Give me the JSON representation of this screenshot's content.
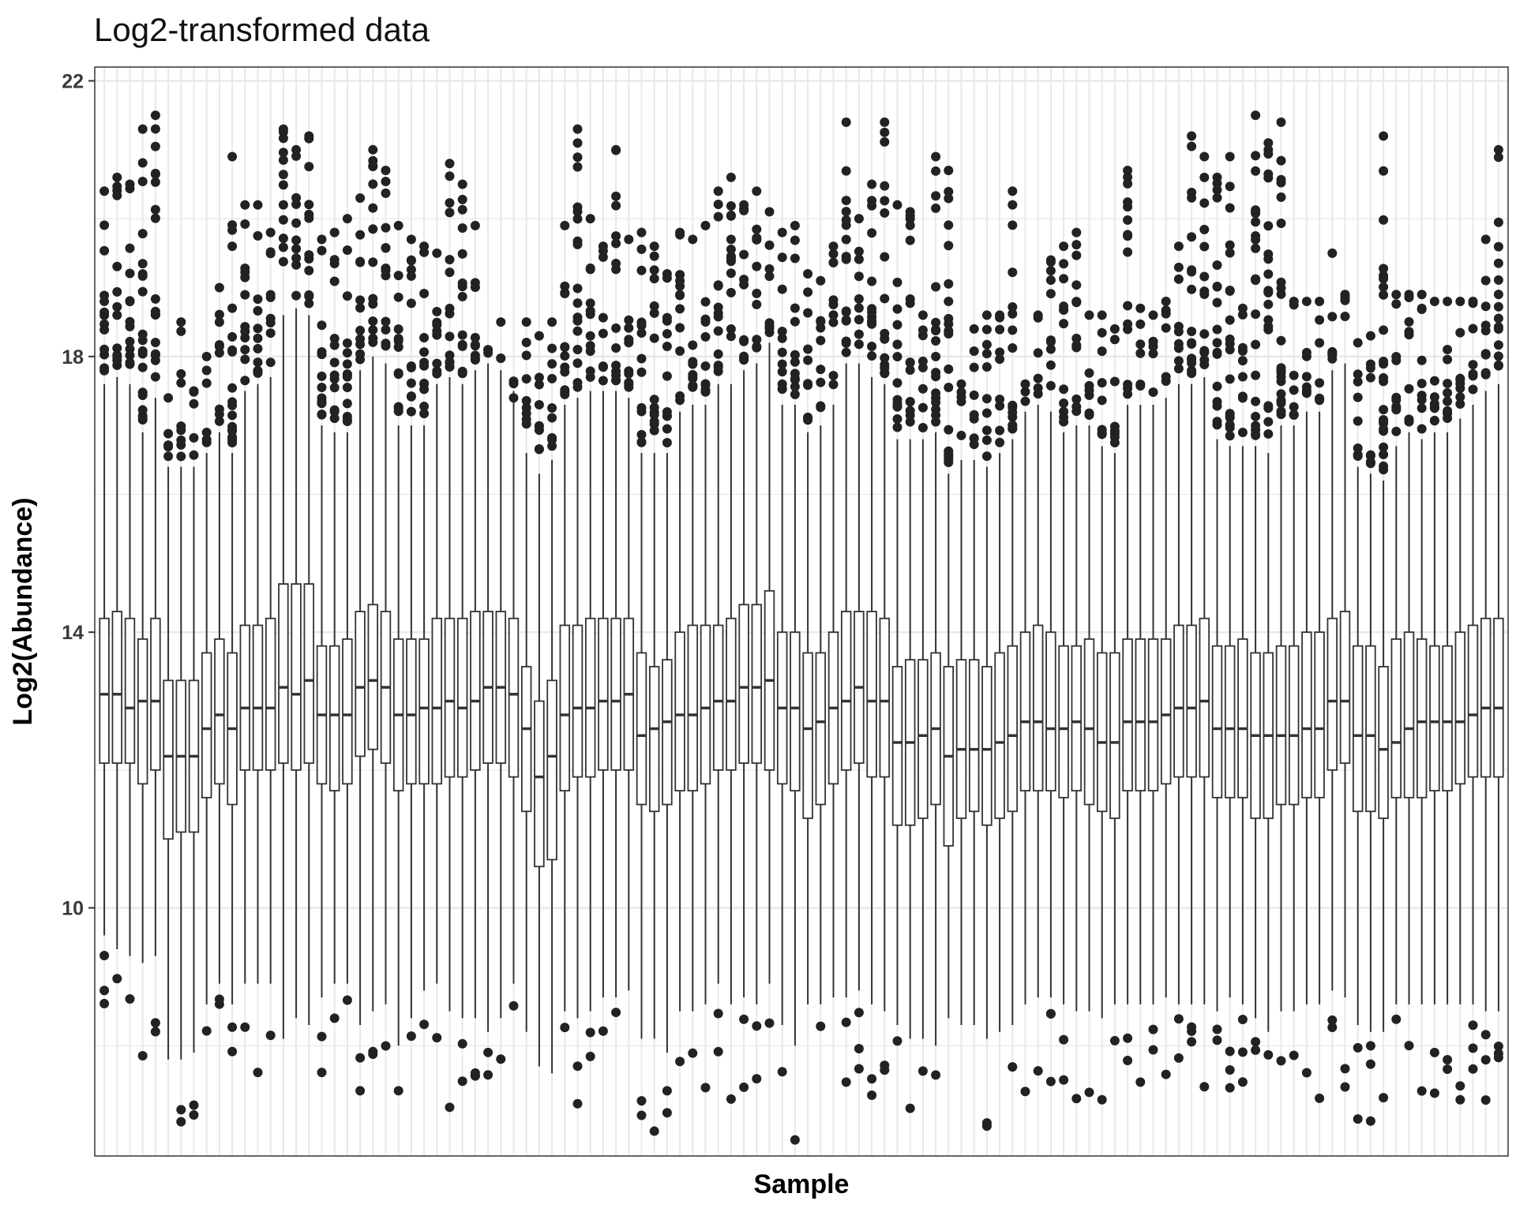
{
  "chart_data": {
    "type": "box",
    "title": "Log2-transformed data",
    "xlabel": "Sample",
    "ylabel": "Log2(Abundance)",
    "ylim": [
      6.4,
      22.2
    ],
    "yticks": [
      10,
      14,
      18,
      22
    ],
    "x_tick_labels_shown": false,
    "grid": true,
    "legend": "none",
    "colors": {
      "box_stroke": "#333333",
      "box_fill": "#ffffff",
      "outlier": "#222222",
      "grid": "#e8e8e8",
      "panel_border": "#333333"
    },
    "series_note": "",
    "medians": [
      13.1,
      13.1,
      12.9,
      13.0,
      13.0,
      12.2,
      12.2,
      12.2,
      12.6,
      12.8,
      12.6,
      12.9,
      12.9,
      12.9,
      13.2,
      13.1,
      13.3,
      12.8,
      12.8,
      12.8,
      13.2,
      13.3,
      13.2,
      12.8,
      12.8,
      12.9,
      12.9,
      13.0,
      12.9,
      13.0,
      13.2,
      13.2,
      13.1,
      12.6,
      11.9,
      12.2,
      12.8,
      12.9,
      12.9,
      13.0,
      13.0,
      13.1,
      12.5,
      12.6,
      12.7,
      12.8,
      12.8,
      12.9,
      13.0,
      13.0,
      13.2,
      13.2,
      13.3,
      12.9,
      12.9,
      12.6,
      12.7,
      12.9,
      13.0,
      13.2,
      13.0,
      13.0,
      12.4,
      12.4,
      12.5,
      12.6,
      12.2,
      12.3,
      12.3,
      12.3,
      12.4,
      12.5,
      12.7,
      12.7,
      12.6,
      12.6,
      12.7,
      12.6,
      12.4,
      12.4,
      12.7,
      12.7,
      12.7,
      12.8,
      12.9,
      12.9,
      13.0,
      12.6,
      12.6,
      12.6,
      12.5,
      12.5,
      12.5,
      12.5,
      12.6,
      12.6,
      13.0,
      13.0,
      12.5,
      12.5,
      12.3,
      12.4,
      12.6,
      12.7,
      12.7,
      12.7,
      12.7,
      12.8,
      12.9,
      12.9
    ],
    "q1": [
      12.1,
      12.1,
      12.1,
      11.8,
      12.0,
      11.0,
      11.1,
      11.1,
      11.6,
      11.8,
      11.5,
      12.0,
      12.0,
      12.0,
      12.1,
      12.0,
      12.1,
      11.8,
      11.7,
      11.8,
      12.2,
      12.3,
      12.1,
      11.7,
      11.8,
      11.8,
      11.8,
      11.9,
      11.9,
      12.0,
      12.1,
      12.1,
      11.9,
      11.4,
      10.6,
      10.7,
      11.7,
      11.9,
      11.9,
      12.0,
      12.0,
      12.0,
      11.5,
      11.4,
      11.5,
      11.7,
      11.7,
      11.8,
      12.0,
      12.0,
      12.1,
      12.1,
      12.0,
      11.8,
      11.7,
      11.3,
      11.5,
      11.8,
      12.0,
      12.1,
      11.9,
      11.9,
      11.2,
      11.2,
      11.3,
      11.5,
      10.9,
      11.3,
      11.4,
      11.2,
      11.3,
      11.4,
      11.7,
      11.7,
      11.7,
      11.6,
      11.7,
      11.5,
      11.4,
      11.3,
      11.7,
      11.7,
      11.7,
      11.8,
      11.9,
      11.9,
      11.9,
      11.6,
      11.6,
      11.6,
      11.3,
      11.3,
      11.5,
      11.5,
      11.6,
      11.6,
      12.0,
      12.1,
      11.4,
      11.4,
      11.3,
      11.6,
      11.6,
      11.6,
      11.7,
      11.7,
      11.8,
      11.9,
      11.9,
      11.9
    ],
    "q3": [
      14.2,
      14.3,
      14.2,
      13.9,
      14.2,
      13.3,
      13.3,
      13.3,
      13.7,
      13.9,
      13.7,
      14.1,
      14.1,
      14.2,
      14.7,
      14.7,
      14.7,
      13.8,
      13.8,
      13.9,
      14.3,
      14.4,
      14.3,
      13.9,
      13.9,
      13.9,
      14.2,
      14.2,
      14.2,
      14.3,
      14.3,
      14.3,
      14.2,
      13.5,
      13.0,
      13.3,
      14.1,
      14.1,
      14.2,
      14.2,
      14.2,
      14.2,
      13.7,
      13.5,
      13.6,
      14.0,
      14.1,
      14.1,
      14.1,
      14.2,
      14.4,
      14.4,
      14.6,
      14.0,
      14.0,
      13.7,
      13.7,
      14.0,
      14.3,
      14.3,
      14.3,
      14.2,
      13.5,
      13.6,
      13.6,
      13.7,
      13.5,
      13.6,
      13.6,
      13.5,
      13.7,
      13.8,
      14.0,
      14.1,
      14.0,
      13.8,
      13.8,
      13.9,
      13.7,
      13.7,
      13.9,
      13.9,
      13.9,
      13.9,
      14.1,
      14.1,
      14.2,
      13.8,
      13.8,
      13.9,
      13.7,
      13.7,
      13.8,
      13.8,
      14.0,
      14.0,
      14.2,
      14.3,
      13.8,
      13.8,
      13.5,
      13.9,
      14.0,
      13.9,
      13.8,
      13.8,
      14.0,
      14.1,
      14.2,
      14.2
    ],
    "whisker_low": [
      9.6,
      9.4,
      9.3,
      9.2,
      9.3,
      7.8,
      7.8,
      7.9,
      8.6,
      8.9,
      8.6,
      8.9,
      8.9,
      8.9,
      8.1,
      8.4,
      8.3,
      8.7,
      8.9,
      8.9,
      8.3,
      8.5,
      8.6,
      8.0,
      8.4,
      8.8,
      8.9,
      8.5,
      8.4,
      8.4,
      8.2,
      8.4,
      8.9,
      8.2,
      7.7,
      7.6,
      8.5,
      8.4,
      8.5,
      8.7,
      8.7,
      8.8,
      8.1,
      8.1,
      7.9,
      8.5,
      8.5,
      8.6,
      8.9,
      8.6,
      8.7,
      8.6,
      8.9,
      8.3,
      8.0,
      8.6,
      8.6,
      8.7,
      8.7,
      8.8,
      8.6,
      8.5,
      8.3,
      8.1,
      8.1,
      8.0,
      8.4,
      8.3,
      8.3,
      8.1,
      8.2,
      8.3,
      8.6,
      8.7,
      8.7,
      8.6,
      8.5,
      8.5,
      8.4,
      8.6,
      8.6,
      8.6,
      8.6,
      8.7,
      8.6,
      8.6,
      8.6,
      8.5,
      8.7,
      8.6,
      8.4,
      8.2,
      8.5,
      8.5,
      8.6,
      8.6,
      8.8,
      8.7,
      8.3,
      8.2,
      8.2,
      8.6,
      8.6,
      8.6,
      8.6,
      8.6,
      8.6,
      8.6,
      8.5,
      8.5
    ],
    "whisker_high": [
      17.6,
      17.7,
      17.6,
      16.9,
      17.4,
      16.4,
      16.4,
      16.4,
      16.6,
      16.9,
      16.6,
      17.5,
      17.6,
      17.7,
      18.6,
      18.7,
      18.6,
      17.0,
      16.9,
      16.9,
      17.8,
      18.0,
      17.9,
      17.0,
      17.0,
      17.0,
      17.6,
      17.7,
      17.6,
      17.8,
      17.9,
      17.8,
      17.5,
      16.6,
      16.3,
      16.5,
      17.3,
      17.4,
      17.5,
      17.5,
      17.5,
      17.4,
      16.6,
      16.6,
      16.6,
      17.2,
      17.3,
      17.3,
      17.6,
      17.6,
      17.8,
      17.9,
      18.2,
      17.3,
      17.3,
      16.9,
      17.0,
      17.3,
      17.9,
      17.9,
      17.7,
      17.6,
      16.8,
      16.8,
      16.8,
      16.9,
      16.3,
      16.5,
      16.5,
      16.4,
      16.6,
      16.8,
      17.2,
      17.3,
      17.2,
      16.9,
      17.0,
      17.0,
      16.7,
      16.6,
      17.3,
      17.3,
      17.3,
      17.4,
      17.6,
      17.6,
      17.7,
      16.8,
      16.7,
      16.7,
      16.7,
      16.6,
      17.0,
      17.0,
      17.2,
      17.2,
      17.8,
      17.9,
      16.4,
      16.3,
      16.2,
      16.7,
      16.9,
      16.8,
      16.9,
      16.9,
      17.1,
      17.3,
      17.5,
      17.6
    ],
    "outlier_max": [
      20.4,
      20.6,
      20.5,
      21.3,
      21.5,
      17.4,
      18.5,
      17.5,
      18.0,
      19.0,
      20.9,
      20.2,
      20.2,
      19.8,
      21.3,
      21.0,
      21.2,
      19.7,
      19.8,
      20.0,
      20.3,
      21.0,
      20.7,
      19.9,
      19.7,
      19.6,
      19.5,
      20.8,
      20.5,
      19.9,
      18.1,
      18.5,
      17.4,
      18.5,
      18.3,
      18.5,
      19.9,
      21.3,
      20.0,
      19.6,
      21.0,
      19.7,
      19.8,
      19.6,
      19.2,
      19.8,
      19.7,
      19.9,
      20.4,
      20.6,
      20.2,
      20.4,
      20.1,
      19.8,
      19.9,
      19.2,
      19.1,
      19.6,
      21.4,
      20.0,
      20.5,
      21.4,
      20.2,
      20.1,
      18.6,
      20.9,
      20.7,
      17.6,
      18.4,
      18.6,
      18.6,
      20.4,
      17.6,
      18.6,
      19.4,
      19.6,
      19.8,
      18.6,
      18.6,
      18.4,
      20.7,
      18.7,
      18.6,
      18.8,
      19.6,
      21.2,
      20.9,
      20.6,
      20.9,
      18.7,
      21.5,
      21.1,
      21.4,
      18.8,
      18.8,
      18.8,
      19.5,
      18.9,
      18.2,
      18.3,
      21.2,
      18.9,
      18.9,
      18.9,
      18.8,
      18.8,
      18.8,
      18.8,
      19.7,
      21.0
    ],
    "outlier_low_counts": [
      3,
      1,
      1,
      1,
      2,
      0,
      2,
      2,
      1,
      2,
      2,
      1,
      1,
      1,
      0,
      0,
      0,
      2,
      1,
      1,
      2,
      2,
      1,
      1,
      1,
      1,
      1,
      1,
      2,
      3,
      2,
      1,
      1,
      0,
      0,
      0,
      1,
      2,
      2,
      1,
      1,
      0,
      2,
      1,
      2,
      1,
      1,
      1,
      2,
      1,
      2,
      2,
      1,
      1,
      1,
      0,
      1,
      0,
      2,
      3,
      2,
      2,
      1,
      1,
      1,
      1,
      0,
      0,
      0,
      2,
      0,
      1,
      1,
      1,
      3,
      2,
      1,
      1,
      1,
      1,
      2,
      1,
      2,
      1,
      2,
      3,
      1,
      2,
      3,
      3,
      2,
      1,
      1,
      1,
      1,
      1,
      2,
      2,
      2,
      3,
      1,
      1,
      1,
      1,
      2,
      2,
      2,
      3,
      3,
      3
    ]
  }
}
